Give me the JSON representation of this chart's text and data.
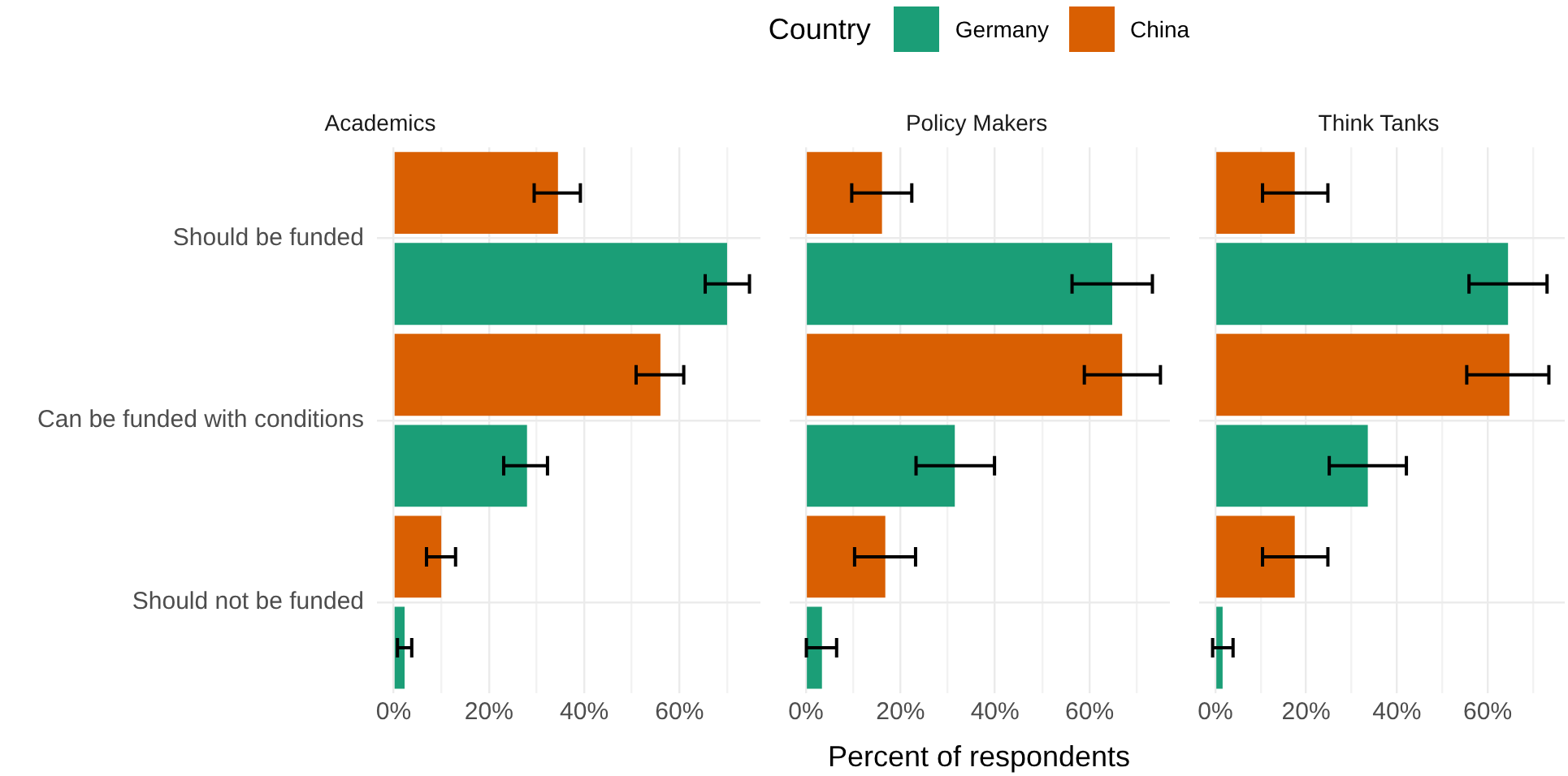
{
  "chart_data": [
    {
      "type": "bar",
      "title": "Academics",
      "orientation": "horizontal",
      "legend": "top",
      "legend_title": "Country",
      "grid": true,
      "categories": [
        "Should be funded",
        "Can be funded with conditions",
        "Should not be funded"
      ],
      "xlim": [
        -3.5,
        77
      ],
      "xticks": [
        {
          "value": 0,
          "label": "0%"
        },
        {
          "value": 10,
          "label": null
        },
        {
          "value": 20,
          "label": "20%"
        },
        {
          "value": 30,
          "label": null
        },
        {
          "value": 40,
          "label": "40%"
        },
        {
          "value": 50,
          "label": null
        },
        {
          "value": 60,
          "label": "60%"
        },
        {
          "value": 70,
          "label": null
        }
      ],
      "series": [
        {
          "name": "Germany",
          "color": "#1b9e77",
          "values": [
            70,
            28,
            2.3
          ],
          "errors": [
            [
              65.4,
              74.7
            ],
            [
              23.1,
              32.3
            ],
            [
              0.8,
              3.8
            ]
          ]
        },
        {
          "name": "China",
          "color": "#d95f02",
          "values": [
            34.5,
            56,
            10
          ],
          "errors": [
            [
              29.5,
              39.2
            ],
            [
              50.9,
              60.9
            ],
            [
              6.9,
              13
            ]
          ]
        }
      ]
    },
    {
      "type": "bar",
      "title": "Policy Makers",
      "orientation": "horizontal",
      "xlabel": "Percent of respondents",
      "grid": true,
      "tick_labels": "x",
      "categories": [
        null,
        null,
        null
      ],
      "xlim": [
        -3.5,
        77
      ],
      "xticks": [
        {
          "value": 0,
          "label": "0%"
        },
        {
          "value": 10,
          "label": null
        },
        {
          "value": 20,
          "label": "20%"
        },
        {
          "value": 30,
          "label": null
        },
        {
          "value": 40,
          "label": "40%"
        },
        {
          "value": 50,
          "label": null
        },
        {
          "value": 60,
          "label": "60%"
        },
        {
          "value": 70,
          "label": null
        }
      ],
      "series": [
        {
          "color": "#1b9e77",
          "values": [
            64.8,
            31.5,
            3.4
          ],
          "errors": [
            [
              56.3,
              73.3
            ],
            [
              23.3,
              39.9
            ],
            [
              0.1,
              6.5
            ]
          ]
        },
        {
          "color": "#d95f02",
          "values": [
            16.1,
            66.9,
            16.8
          ],
          "errors": [
            [
              9.7,
              22.4
            ],
            [
              58.9,
              75
            ],
            [
              10.3,
              23.2
            ]
          ]
        }
      ]
    },
    {
      "type": "bar",
      "title": "Think Tanks",
      "orientation": "horizontal",
      "grid": true,
      "tick_labels": "x",
      "categories": [
        null,
        null,
        null
      ],
      "xlim": [
        -3.5,
        77
      ],
      "xticks": [
        {
          "value": 0,
          "label": "0%"
        },
        {
          "value": 10,
          "label": null
        },
        {
          "value": 20,
          "label": "20%"
        },
        {
          "value": 30,
          "label": null
        },
        {
          "value": 40,
          "label": "40%"
        },
        {
          "value": 50,
          "label": null
        },
        {
          "value": 60,
          "label": "60%"
        },
        {
          "value": 70,
          "label": null
        }
      ],
      "series": [
        {
          "color": "#1b9e77",
          "values": [
            64.5,
            33.6,
            1.6
          ],
          "errors": [
            [
              55.9,
              73.1
            ],
            [
              25.1,
              42.1
            ],
            [
              -0.6,
              3.9
            ]
          ]
        },
        {
          "color": "#d95f02",
          "values": [
            17.5,
            64.8,
            17.5
          ],
          "errors": [
            [
              10.4,
              24.8
            ],
            [
              55.4,
              73.5
            ],
            [
              10.4,
              24.8
            ]
          ]
        }
      ]
    }
  ]
}
